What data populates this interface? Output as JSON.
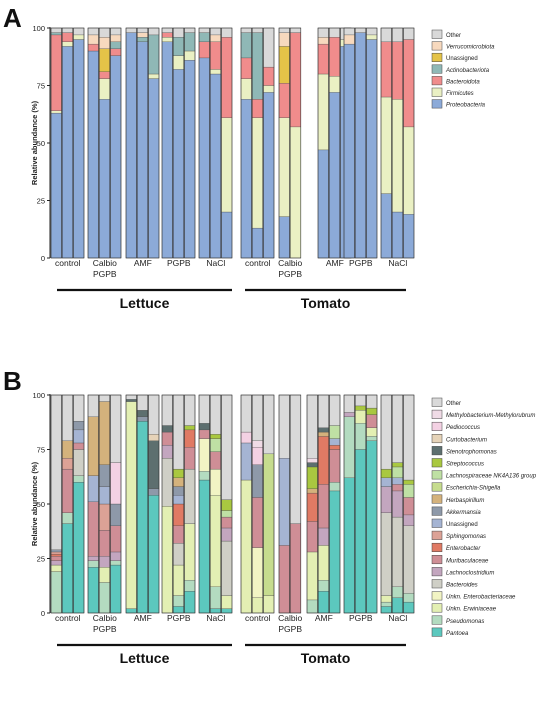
{
  "panel_letters": [
    "A",
    "B"
  ],
  "palettes": {
    "A": {
      "Other": "#d9d9d9",
      "Verrucomicrobiota": "#f7d9be",
      "Unassigned": "#e4c348",
      "Actinobacteriota": "#8fb8b6",
      "Bacteroidota": "#f08c8c",
      "Firmicutes": "#eaf0c3",
      "Proteobacteria": "#8caad8"
    },
    "B": {
      "Other": "#d9d9d9",
      "Methylobacterium-Methylorubrum": "#f0dbe6",
      "Pediococcus": "#f3d1e3",
      "Curtobacterium": "#e6d3b8",
      "Stenotrophomonas": "#5d6f6f",
      "Streptococcus": "#a9c840",
      "Lachnospiraceae NK4A136 group": "#bfe0a4",
      "Escherichia-Shigella": "#c6dc8e",
      "Herbaspirillum": "#d4b27c",
      "Akkermansia": "#8e99a9",
      "Unassigned": "#a5b4d3",
      "Sphingomonas": "#dca296",
      "Enterobacter": "#e07a64",
      "Muribaculaceae": "#cf8e96",
      "Lachnoclostridium": "#c3a6bf",
      "Bacteroides": "#cfcfc6",
      "Unkn. Enterobacteriaceae": "#f2f4c4",
      "Unkn. Erwiniaceae": "#e3efb3",
      "Pseudomonas": "#b3dbc0",
      "Pantoea": "#5cc8be"
    }
  },
  "chart_data": [
    {
      "type": "bar",
      "stacked": true,
      "panel": "A",
      "ylabel": "Relative abundance (%)",
      "ylim": [
        0,
        100
      ],
      "yticks": [
        0,
        25,
        50,
        75,
        100
      ],
      "grid": false,
      "legend_position": "top-right",
      "legend": [
        "Other",
        "Verrucomicrobiota",
        "Unassigned",
        "Actinobacteriota",
        "Bacteroidota",
        "Firmicutes",
        "Proteobacteria"
      ],
      "groups": [
        {
          "label": "control",
          "plant": "Lettuce",
          "samples": [
            {
              "Proteobacteria": 63,
              "Bacteroidota": 33,
              "Actinobacteriota": 1,
              "Firmicutes": 1,
              "Other": 2
            },
            {
              "Proteobacteria": 92,
              "Bacteroidota": 4,
              "Firmicutes": 2,
              "Other": 2
            },
            {
              "Proteobacteria": 95,
              "Firmicutes": 2,
              "Other": 3
            }
          ]
        },
        {
          "label": "Calbio PGPB",
          "plant": "Lettuce",
          "samples": [
            {
              "Proteobacteria": 90,
              "Bacteroidota": 3,
              "Verrucomicrobiota": 4,
              "Other": 3
            },
            {
              "Proteobacteria": 69,
              "Firmicutes": 9,
              "Bacteroidota": 3,
              "Unassigned": 10,
              "Verrucomicrobiota": 5,
              "Other": 4
            },
            {
              "Proteobacteria": 88,
              "Actinobacteriota": 3,
              "Bacteroidota": 3,
              "Verrucomicrobiota": 3,
              "Other": 3
            }
          ]
        },
        {
          "label": "AMF",
          "plant": "Lettuce",
          "samples": [
            {
              "Proteobacteria": 98,
              "Other": 2
            },
            {
              "Proteobacteria": 94,
              "Actinobacteriota": 2,
              "Verrucomicrobiota": 2,
              "Other": 2
            },
            {
              "Proteobacteria": 78,
              "Firmicutes": 2,
              "Actinobacteriota": 17,
              "Other": 3
            }
          ]
        },
        {
          "label": "PGPB",
          "plant": "Lettuce",
          "samples": [
            {
              "Proteobacteria": 94,
              "Bacteroidota": 2,
              "Firmicutes": 2,
              "Other": 2
            },
            {
              "Proteobacteria": 82,
              "Firmicutes": 6,
              "Actinobacteriota": 8,
              "Other": 4
            },
            {
              "Proteobacteria": 86,
              "Firmicutes": 4,
              "Actinobacteriota": 8,
              "Other": 2
            }
          ]
        },
        {
          "label": "NaCl",
          "plant": "Lettuce",
          "samples": [
            {
              "Proteobacteria": 87,
              "Bacteroidota": 7,
              "Actinobacteriota": 4,
              "Other": 2
            },
            {
              "Proteobacteria": 80,
              "Firmicutes": 2,
              "Bacteroidota": 12,
              "Verrucomicrobiota": 3,
              "Other": 3
            },
            {
              "Proteobacteria": 20,
              "Firmicutes": 41,
              "Bacteroidota": 35,
              "Other": 4
            }
          ]
        },
        {
          "label": "control",
          "plant": "Tomato",
          "samples": [
            {
              "Proteobacteria": 69,
              "Firmicutes": 9,
              "Bacteroidota": 9,
              "Actinobacteriota": 11,
              "Other": 2
            },
            {
              "Proteobacteria": 13,
              "Firmicutes": 48,
              "Bacteroidota": 8,
              "Actinobacteriota": 29,
              "Other": 2
            },
            {
              "Proteobacteria": 72,
              "Firmicutes": 3,
              "Bacteroidota": 8,
              "Other": 17
            }
          ]
        },
        {
          "label": "Calbio PGPB",
          "plant": "Tomato",
          "samples": [
            {
              "Proteobacteria": 18,
              "Firmicutes": 43,
              "Bacteroidota": 15,
              "Unassigned": 16,
              "Verrucomicrobiota": 6,
              "Other": 2
            },
            {
              "Bacteroidota": 41,
              "Firmicutes": 57,
              "Other": 2
            }
          ]
        },
        {
          "label": "AMF",
          "plant": "Tomato",
          "samples": [
            {
              "Proteobacteria": 47,
              "Firmicutes": 33,
              "Bacteroidota": 13,
              "Verrucomicrobiota": 3,
              "Other": 4
            },
            {
              "Proteobacteria": 72,
              "Firmicutes": 7,
              "Bacteroidota": 17,
              "Other": 4
            },
            {
              "Proteobacteria": 92,
              "Firmicutes": 3,
              "Other": 5
            }
          ]
        },
        {
          "label": "PGPB",
          "plant": "Tomato",
          "samples": [
            {
              "Proteobacteria": 93,
              "Verrucomicrobiota": 4,
              "Other": 3
            },
            {
              "Proteobacteria": 98,
              "Other": 2
            },
            {
              "Proteobacteria": 95,
              "Firmicutes": 2,
              "Other": 3
            }
          ]
        },
        {
          "label": "NaCl",
          "plant": "Tomato",
          "samples": [
            {
              "Proteobacteria": 28,
              "Firmicutes": 42,
              "Bacteroidota": 24,
              "Other": 6
            },
            {
              "Proteobacteria": 20,
              "Firmicutes": 49,
              "Bacteroidota": 25,
              "Other": 6
            },
            {
              "Proteobacteria": 19,
              "Firmicutes": 38,
              "Bacteroidota": 38,
              "Other": 5
            }
          ]
        }
      ],
      "plant_labels": [
        "Lettuce",
        "Tomato"
      ]
    },
    {
      "type": "bar",
      "stacked": true,
      "panel": "B",
      "ylabel": "Relative abundance (%)",
      "ylim": [
        0,
        100
      ],
      "yticks": [
        0,
        25,
        50,
        75,
        100
      ],
      "grid": false,
      "legend_position": "top-right",
      "legend": [
        "Other",
        "Methylobacterium-Methylorubrum",
        "Pediococcus",
        "Curtobacterium",
        "Stenotrophomonas",
        "Streptococcus",
        "Lachnospiraceae NK4A136 group",
        "Escherichia-Shigella",
        "Herbaspirillum",
        "Akkermansia",
        "Unassigned",
        "Sphingomonas",
        "Enterobacter",
        "Muribaculaceae",
        "Lachnoclostridium",
        "Bacteroides",
        "Unkn. Enterobacteriaceae",
        "Unkn. Erwiniaceae",
        "Pseudomonas",
        "Pantoea"
      ],
      "groups": [
        {
          "label": "control",
          "plant": "Lettuce",
          "samples": [
            {
              "Pseudomonas": 19,
              "Unkn. Erwiniaceae": 3,
              "Lachnoclostridium": 2,
              "Muribaculaceae": 2,
              "Enterobacter": 1,
              "Sphingomonas": 1,
              "Akkermansia": 1,
              "Other": 71
            },
            {
              "Pantoea": 41,
              "Pseudomonas": 5,
              "Muribaculaceae": 20,
              "Sphingomonas": 5,
              "Herbaspirillum": 8,
              "Other": 21
            },
            {
              "Pantoea": 60,
              "Pseudomonas": 3,
              "Bacteroides": 12,
              "Unassigned": 6,
              "Akkermansia": 4,
              "Muribaculaceae": 3,
              "Other": 12
            }
          ]
        },
        {
          "label": "Calbio PGPB",
          "plant": "Lettuce",
          "samples": [
            {
              "Pantoea": 21,
              "Pseudomonas": 3,
              "Lachnoclostridium": 2,
              "Muribaculaceae": 25,
              "Herbaspirillum": 27,
              "Unassigned": 12,
              "Other": 10
            },
            {
              "Pseudomonas": 14,
              "Unkn. Erwiniaceae": 7,
              "Lachnoclostridium": 5,
              "Muribaculaceae": 12,
              "Sphingomonas": 12,
              "Herbaspirillum": 29,
              "Unassigned": 8,
              "Akkermansia": 10,
              "Other": 3
            },
            {
              "Pantoea": 22,
              "Pseudomonas": 2,
              "Lachnoclostridium": 4,
              "Muribaculaceae": 12,
              "Akkermansia": 10,
              "Pediococcus": 19,
              "Other": 31
            }
          ]
        },
        {
          "label": "AMF",
          "plant": "Lettuce",
          "samples": [
            {
              "Pantoea": 2,
              "Unkn. Erwiniaceae": 95,
              "Stenotrophomonas": 1,
              "Other": 2
            },
            {
              "Pantoea": 88,
              "Stenotrophomonas": 3,
              "Akkermansia": 2,
              "Other": 7
            },
            {
              "Pantoea": 54,
              "Stenotrophomonas": 22,
              "Curtobacterium": 3,
              "Akkermansia": 3,
              "Other": 18
            }
          ]
        },
        {
          "label": "PGPB",
          "plant": "Lettuce",
          "samples": [
            {
              "Unkn. Erwiniaceae": 49,
              "Muribaculaceae": 6,
              "Lachnoclostridium": 6,
              "Bacteroides": 22,
              "Stenotrophomonas": 3,
              "Other": 14
            },
            {
              "Pantoea": 3,
              "Unkn. Erwiniaceae": 14,
              "Pseudomonas": 5,
              "Enterobacter": 10,
              "Muribaculaceae": 8,
              "Herbaspirillum": 4,
              "Akkermansia": 4,
              "Unassigned": 4,
              "Streptococcus": 4,
              "Bacteroides": 10,
              "Other": 34
            },
            {
              "Pantoea": 10,
              "Unkn. Erwiniaceae": 26,
              "Pseudomonas": 5,
              "Enterobacter": 8,
              "Muribaculaceae": 10,
              "Bacteroides": 25,
              "Streptococcus": 2,
              "Other": 14
            }
          ]
        },
        {
          "label": "NaCl",
          "plant": "Lettuce",
          "samples": [
            {
              "Pantoea": 61,
              "Pseudomonas": 4,
              "Unkn. Enterobacteriaceae": 15,
              "Muribaculaceae": 4,
              "Stenotrophomonas": 3,
              "Other": 13
            },
            {
              "Pantoea": 2,
              "Unkn. Erwiniaceae": 42,
              "Pseudomonas": 10,
              "Muribaculaceae": 8,
              "Unkn. Enterobacteriaceae": 12,
              "Lachnospiraceae NK4A136 group": 6,
              "Streptococcus": 2,
              "Other": 18
            },
            {
              "Pantoea": 2,
              "Unkn. Erwiniaceae": 6,
              "Bacteroides": 25,
              "Muribaculaceae": 5,
              "Lachnoclostridium": 6,
              "Streptococcus": 5,
              "Lachnospiraceae NK4A136 group": 3,
              "Other": 48
            }
          ]
        },
        {
          "label": "control",
          "plant": "Tomato",
          "samples": [
            {
              "Unkn. Erwiniaceae": 61,
              "Unassigned": 17,
              "Pediococcus": 5,
              "Other": 17
            },
            {
              "Unkn. Erwiniaceae": 7,
              "Unkn. Enterobacteriaceae": 23,
              "Muribaculaceae": 23,
              "Akkermansia": 15,
              "Pediococcus": 8,
              "Methylobacterium-Methylorubrum": 3,
              "Other": 21
            },
            {
              "Unkn. Erwiniaceae": 8,
              "Escherichia-Shigella": 65,
              "Other": 27
            }
          ]
        },
        {
          "label": "Calbio PGPB",
          "plant": "Tomato",
          "samples": [
            {
              "Muribaculaceae": 31,
              "Unassigned": 40,
              "Other": 29
            },
            {
              "Muribaculaceae": 41,
              "Other": 59
            }
          ]
        },
        {
          "label": "AMF",
          "plant": "Tomato",
          "samples": [
            {
              "Pseudomonas": 6,
              "Unkn. Erwiniaceae": 22,
              "Muribaculaceae": 14,
              "Enterobacter": 13,
              "Herbaspirillum": 2,
              "Streptococcus": 10,
              "Stenotrophomonas": 2,
              "Methylobacterium-Methylorubrum": 2,
              "Other": 29
            },
            {
              "Pantoea": 10,
              "Unkn. Erwiniaceae": 16,
              "Pseudomonas": 5,
              "Lachnoclostridium": 8,
              "Muribaculaceae": 20,
              "Enterobacter": 22,
              "Herbaspirillum": 2,
              "Stenotrophomonas": 2,
              "Other": 15
            },
            {
              "Pantoea": 56,
              "Pseudomonas": 4,
              "Enterobacter": 2,
              "Unassigned": 3,
              "Muribaculaceae": 15,
              "Lachnospiraceae NK4A136 group": 6,
              "Other": 14
            }
          ]
        },
        {
          "label": "PGPB",
          "plant": "Tomato",
          "samples": [
            {
              "Pantoea": 62,
              "Pseudomonas": 28,
              "Lachnoclostridium": 2,
              "Other": 8
            },
            {
              "Pantoea": 75,
              "Pseudomonas": 12,
              "Unkn. Erwiniaceae": 6,
              "Streptococcus": 2,
              "Other": 5
            },
            {
              "Pantoea": 79,
              "Pseudomonas": 2,
              "Unkn. Erwiniaceae": 4,
              "Muribaculaceae": 6,
              "Streptococcus": 3,
              "Other": 6
            }
          ]
        },
        {
          "label": "NaCl",
          "plant": "Tomato",
          "samples": [
            {
              "Pantoea": 3,
              "Pseudomonas": 2,
              "Unkn. Erwiniaceae": 3,
              "Bacteroides": 38,
              "Lachnoclostridium": 12,
              "Unassigned": 4,
              "Streptococcus": 4,
              "Other": 34
            },
            {
              "Pantoea": 7,
              "Pseudomonas": 5,
              "Bacteroides": 32,
              "Lachnoclostridium": 12,
              "Unassigned": 3,
              "Muribaculaceae": 3,
              "Lachnospiraceae NK4A136 group": 5,
              "Streptococcus": 2,
              "Other": 31
            },
            {
              "Pantoea": 5,
              "Pseudomonas": 4,
              "Bacteroides": 31,
              "Lachnoclostridium": 5,
              "Muribaculaceae": 8,
              "Lachnospiraceae NK4A136 group": 6,
              "Streptococcus": 2,
              "Other": 39
            }
          ]
        }
      ],
      "plant_labels": [
        "Lettuce",
        "Tomato"
      ]
    }
  ]
}
